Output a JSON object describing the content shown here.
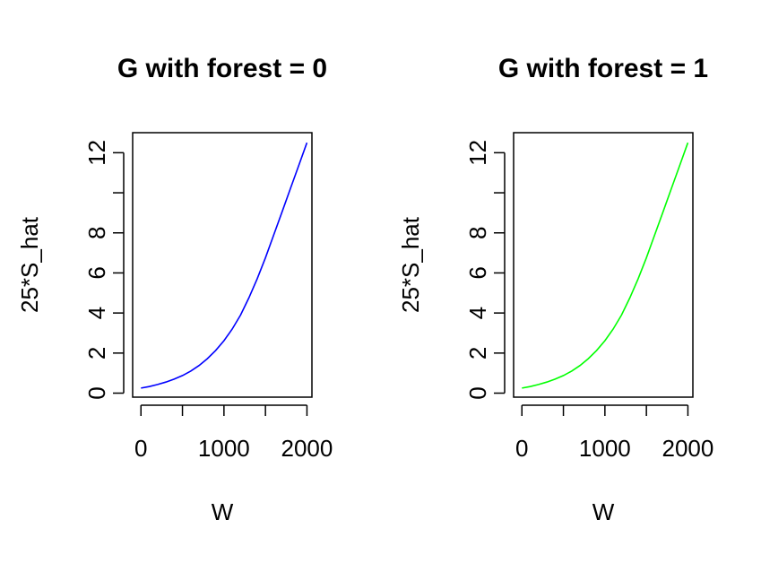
{
  "chart_data": [
    {
      "type": "line",
      "title": "G with forest = 0",
      "xlabel": "W",
      "ylabel": "25*S_hat",
      "xlim": [
        -100,
        2060
      ],
      "ylim": [
        -0.2,
        13.0
      ],
      "xticks": [
        0,
        500,
        1000,
        1500,
        2000
      ],
      "xticklabels": [
        "0",
        "",
        "1000",
        "",
        "2000"
      ],
      "yticks": [
        0,
        2,
        4,
        6,
        8,
        10,
        12
      ],
      "yticklabels": [
        "0",
        "2",
        "4",
        "6",
        "8",
        "",
        "12"
      ],
      "grid": false,
      "color": "#0000ff",
      "series": [
        {
          "x": [
            0,
            100,
            200,
            300,
            400,
            500,
            600,
            700,
            800,
            900,
            1000,
            1100,
            1200,
            1300,
            1400,
            1500,
            1600,
            1700,
            1800,
            1900,
            2000
          ],
          "y": [
            0.25,
            0.33,
            0.43,
            0.55,
            0.7,
            0.88,
            1.1,
            1.38,
            1.72,
            2.13,
            2.62,
            3.2,
            3.9,
            4.75,
            5.7,
            6.75,
            7.9,
            9.05,
            10.2,
            11.35,
            12.5
          ]
        }
      ]
    },
    {
      "type": "line",
      "title": "G with forest = 1",
      "xlabel": "W",
      "ylabel": "25*S_hat",
      "xlim": [
        -100,
        2060
      ],
      "ylim": [
        -0.2,
        13.0
      ],
      "xticks": [
        0,
        500,
        1000,
        1500,
        2000
      ],
      "xticklabels": [
        "0",
        "",
        "1000",
        "",
        "2000"
      ],
      "yticks": [
        0,
        2,
        4,
        6,
        8,
        10,
        12
      ],
      "yticklabels": [
        "0",
        "2",
        "4",
        "6",
        "8",
        "",
        "12"
      ],
      "grid": false,
      "color": "#00ff00",
      "series": [
        {
          "x": [
            0,
            100,
            200,
            300,
            400,
            500,
            600,
            700,
            800,
            900,
            1000,
            1100,
            1200,
            1300,
            1400,
            1500,
            1600,
            1700,
            1800,
            1900,
            2000
          ],
          "y": [
            0.25,
            0.33,
            0.43,
            0.55,
            0.7,
            0.88,
            1.1,
            1.38,
            1.72,
            2.13,
            2.62,
            3.2,
            3.9,
            4.75,
            5.7,
            6.75,
            7.9,
            9.05,
            10.2,
            11.35,
            12.5
          ]
        }
      ]
    }
  ]
}
